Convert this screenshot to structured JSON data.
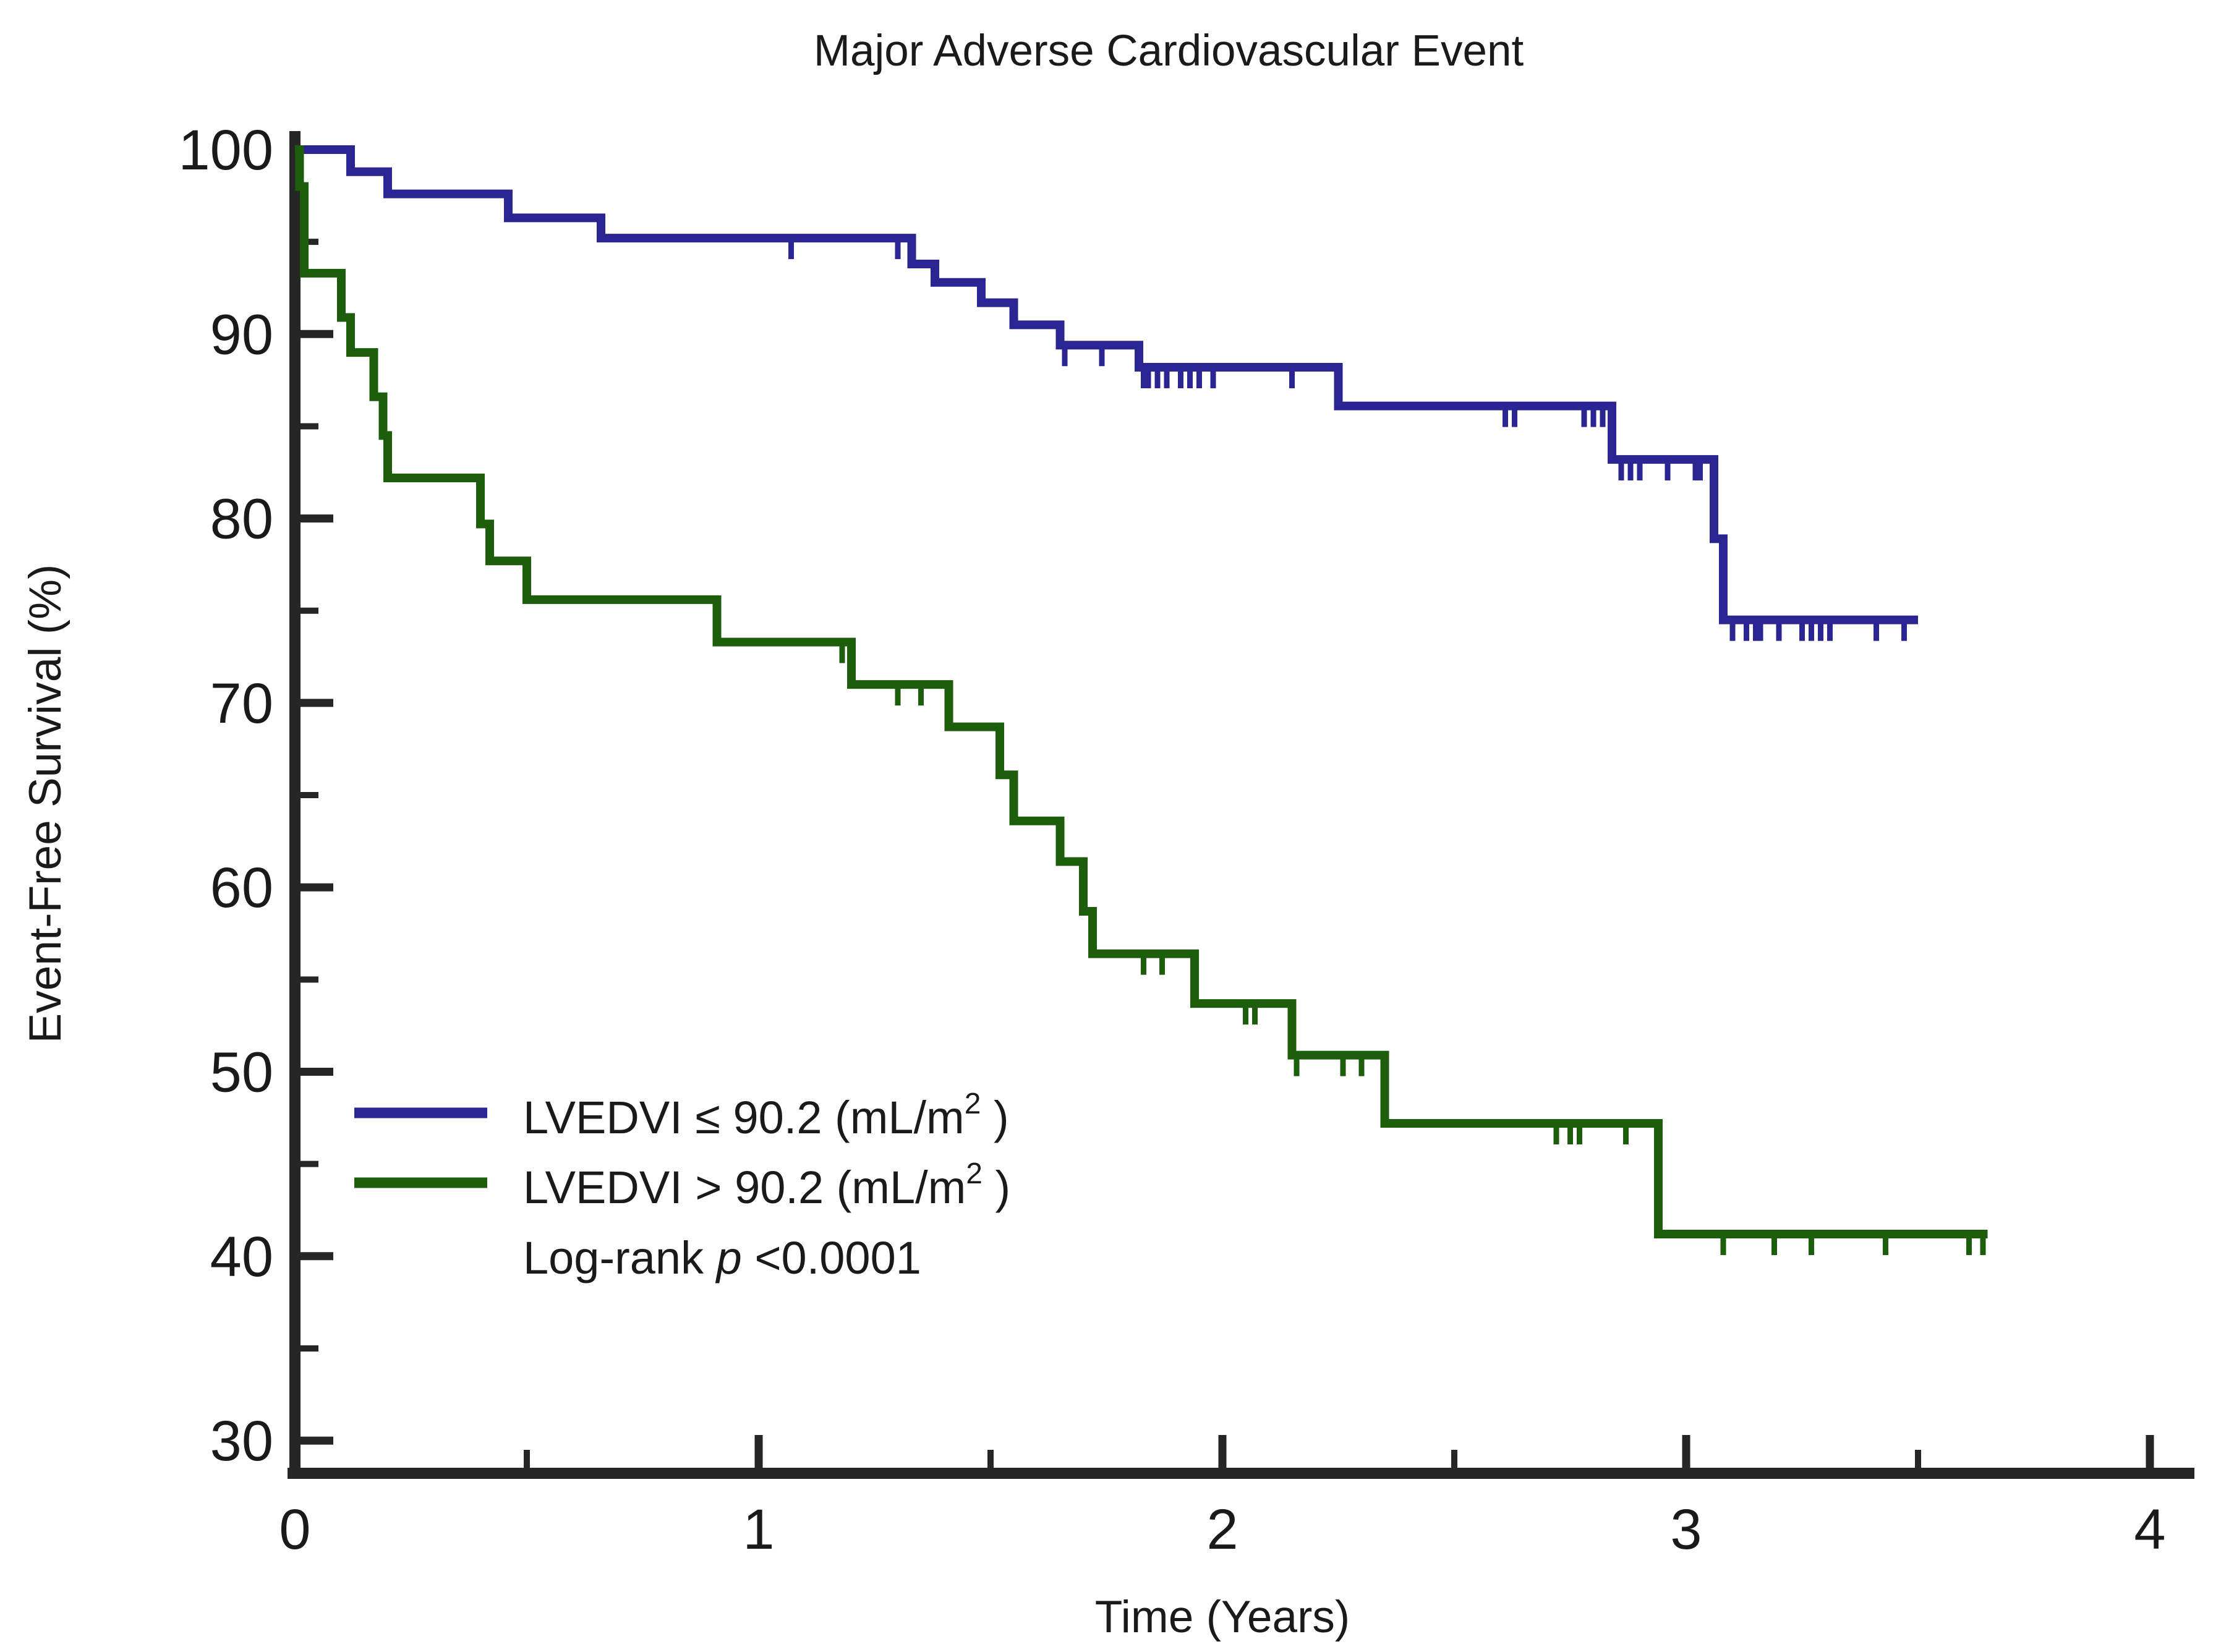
{
  "chart_data": {
    "type": "line",
    "subtype": "kaplan-meier-step",
    "title": "Major Adverse Cardiovascular Event",
    "xlabel": "Time (Years)",
    "ylabel": "Event-Free Survival (%)",
    "xlim": [
      0,
      4
    ],
    "ylim": [
      30,
      100
    ],
    "xticks": [
      0,
      1,
      2,
      3,
      4
    ],
    "xminorticks": [
      0.5,
      1.5,
      2.5,
      3.5
    ],
    "yticks": [
      100,
      90,
      80,
      70,
      60,
      50,
      40,
      30
    ],
    "yminorticks": [
      95,
      85,
      75,
      65,
      55,
      45,
      35
    ],
    "grid": false,
    "legend_position": "inside lower-left",
    "logrank_p": "<0.0001",
    "series": [
      {
        "name": "LVEDVI ≤ 90.2 (mL/m²)",
        "color": "#2b2593",
        "start": [
          0,
          100
        ],
        "steps": [
          [
            0.12,
            98.8
          ],
          [
            0.2,
            97.6
          ],
          [
            0.46,
            96.3
          ],
          [
            0.66,
            95.2
          ],
          [
            1.33,
            93.8
          ],
          [
            1.38,
            92.8
          ],
          [
            1.48,
            91.7
          ],
          [
            1.55,
            90.5
          ],
          [
            1.65,
            89.4
          ],
          [
            1.82,
            88.2
          ],
          [
            2.25,
            86.1
          ],
          [
            2.84,
            83.2
          ],
          [
            3.06,
            78.9
          ],
          [
            3.08,
            74.5
          ]
        ],
        "end_time": 3.5,
        "censor_times": [
          1.07,
          1.3,
          1.66,
          1.74,
          1.83,
          1.84,
          1.86,
          1.88,
          1.91,
          1.93,
          1.95,
          1.98,
          2.15,
          2.61,
          2.63,
          2.78,
          2.8,
          2.82,
          2.86,
          2.88,
          2.9,
          2.96,
          3.02,
          3.03,
          3.1,
          3.13,
          3.15,
          3.16,
          3.2,
          3.25,
          3.27,
          3.29,
          3.31,
          3.41,
          3.47
        ]
      },
      {
        "name": "LVEDVI > 90.2 (mL/m²)",
        "color": "#1d5e0d",
        "start": [
          0,
          100
        ],
        "steps": [
          [
            0.01,
            98.0
          ],
          [
            0.02,
            93.3
          ],
          [
            0.1,
            90.9
          ],
          [
            0.12,
            89.0
          ],
          [
            0.17,
            86.6
          ],
          [
            0.19,
            84.5
          ],
          [
            0.2,
            82.2
          ],
          [
            0.4,
            79.7
          ],
          [
            0.42,
            77.7
          ],
          [
            0.5,
            75.6
          ],
          [
            0.91,
            73.3
          ],
          [
            1.2,
            71.0
          ],
          [
            1.41,
            68.7
          ],
          [
            1.52,
            66.1
          ],
          [
            1.55,
            63.6
          ],
          [
            1.65,
            61.4
          ],
          [
            1.7,
            58.7
          ],
          [
            1.72,
            56.4
          ],
          [
            1.94,
            53.7
          ],
          [
            2.15,
            50.9
          ],
          [
            2.35,
            47.2
          ],
          [
            2.94,
            41.2
          ]
        ],
        "end_time": 3.65,
        "censor_times": [
          1.18,
          1.3,
          1.35,
          1.83,
          1.87,
          2.05,
          2.07,
          2.16,
          2.26,
          2.3,
          2.72,
          2.75,
          2.77,
          2.87,
          3.08,
          3.19,
          3.27,
          3.43,
          3.61,
          3.64
        ]
      }
    ]
  },
  "legend": {
    "items": [
      {
        "color": "#2b2593",
        "prefix": "LVEDVI ≤ 90.2 (mL/m",
        "sup": "2",
        "suffix": " )"
      },
      {
        "color": "#1d5e0d",
        "prefix": "LVEDVI > 90.2 (mL/m",
        "sup": "2",
        "suffix": " )"
      }
    ],
    "logrank": {
      "prefix": "Log-rank ",
      "italic": "p",
      "suffix": " <0.0001"
    }
  }
}
